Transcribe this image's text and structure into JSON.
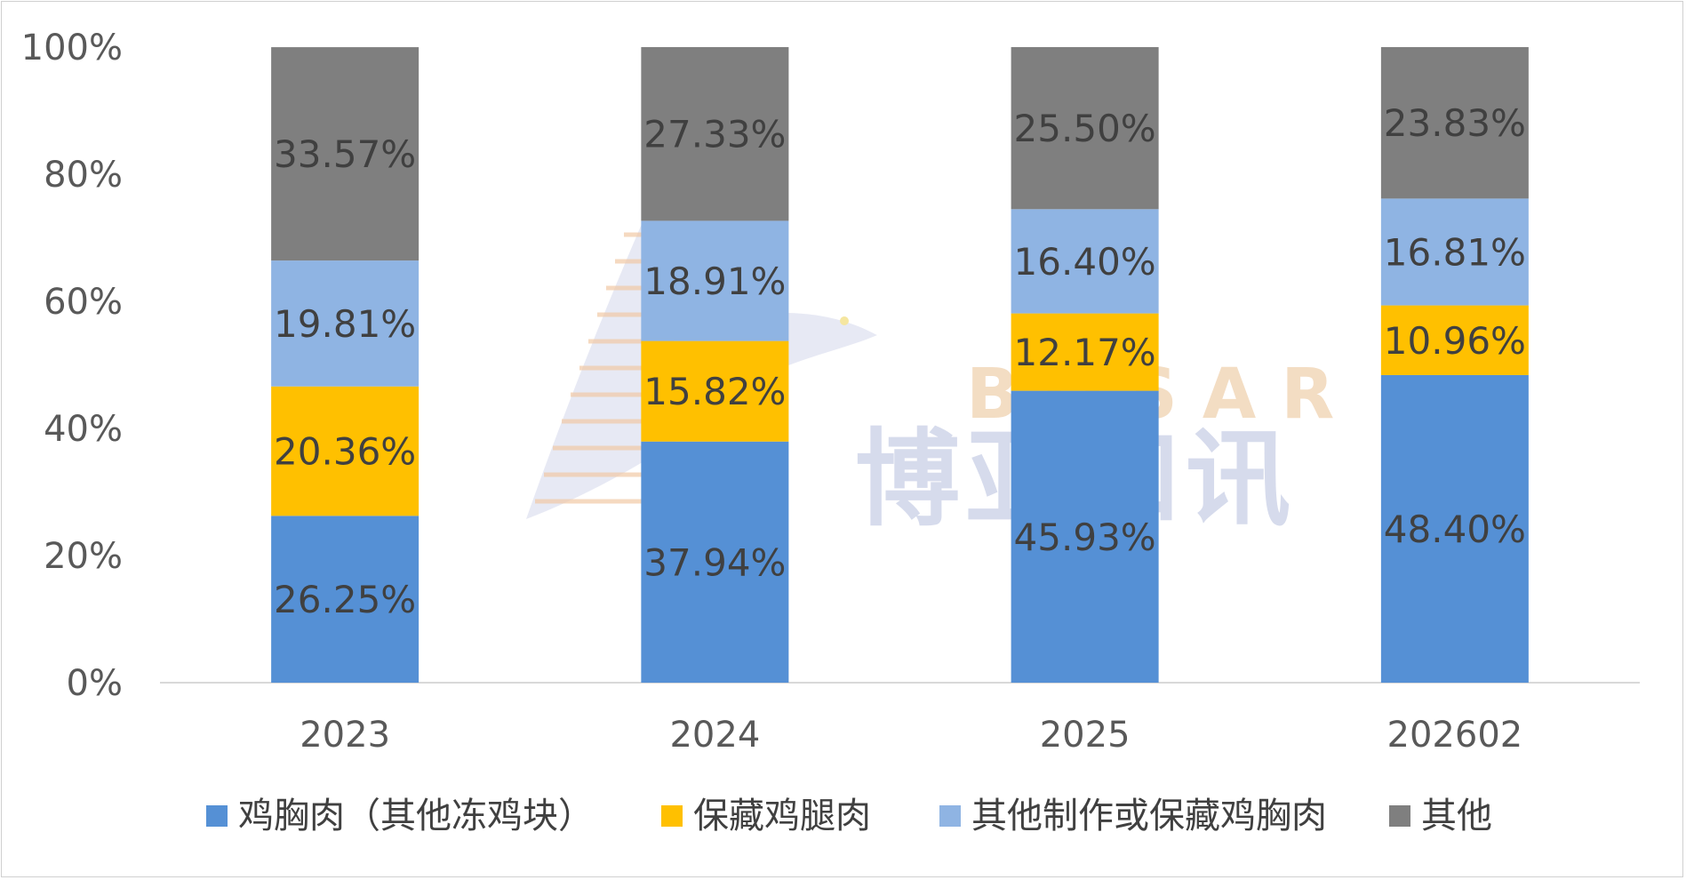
{
  "watermark": {
    "latin": "BOSAR",
    "chinese": "博亚和讯"
  },
  "chart_data": {
    "type": "bar",
    "stacked": true,
    "categories": [
      "2023",
      "2024",
      "2025",
      "202602"
    ],
    "series": [
      {
        "name": "鸡胸肉（其他冻鸡块）",
        "color": "#5590D5",
        "values": [
          26.25,
          37.94,
          45.93,
          48.4
        ],
        "labels": [
          "26.25%",
          "37.94%",
          "45.93%",
          "48.40%"
        ]
      },
      {
        "name": "保藏鸡腿肉",
        "color": "#FFC000",
        "values": [
          20.36,
          15.82,
          12.17,
          10.96
        ],
        "labels": [
          "20.36%",
          "15.82%",
          "12.17%",
          "10.96%"
        ]
      },
      {
        "name": "其他制作或保藏鸡胸肉",
        "color": "#8FB4E3",
        "values": [
          19.81,
          18.91,
          16.4,
          16.81
        ],
        "labels": [
          "19.81%",
          "18.91%",
          "16.40%",
          "16.81%"
        ]
      },
      {
        "name": "其他",
        "color": "#7F7F7F",
        "values": [
          33.57,
          27.33,
          25.5,
          23.83
        ],
        "labels": [
          "33.57%",
          "27.33%",
          "25.50%",
          "23.83%"
        ]
      }
    ],
    "ylim": [
      0,
      100
    ],
    "yticks": [
      "0%",
      "20%",
      "40%",
      "60%",
      "80%",
      "100%"
    ],
    "title": "",
    "xlabel": "",
    "ylabel": "",
    "grid": false,
    "legend": "bottom"
  }
}
